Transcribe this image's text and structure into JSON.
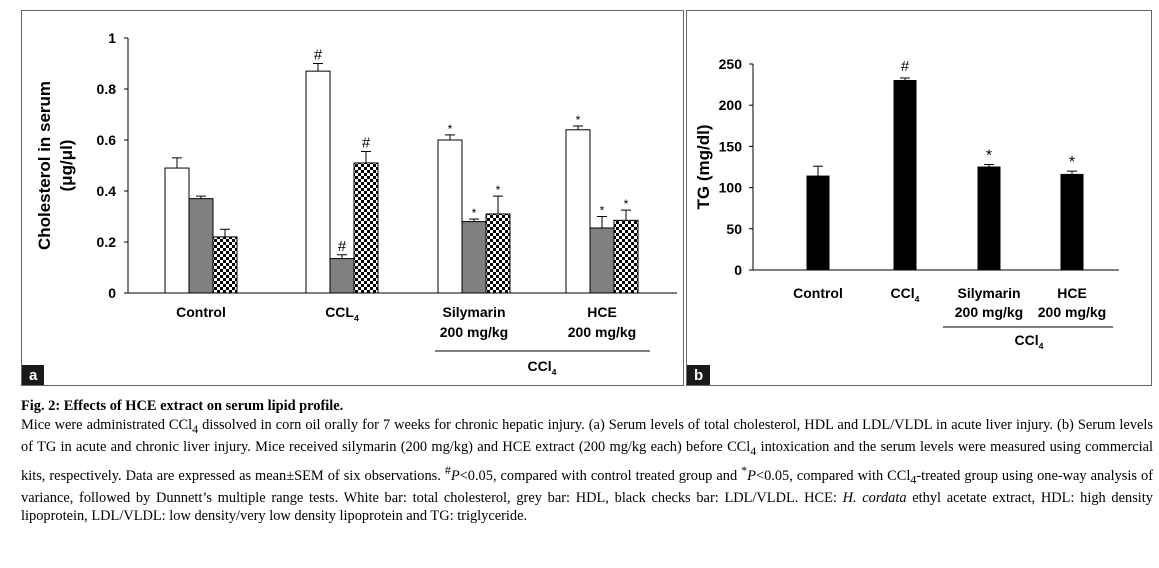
{
  "chart_data": [
    {
      "type": "bar",
      "panel_label": "a",
      "ylabel": "Cholesterol in serum (μg/μl)",
      "ylim": [
        0,
        1
      ],
      "yticks": [
        "0",
        "0.2",
        "0.4",
        "0.6",
        "0.8",
        "1"
      ],
      "categories": [
        {
          "label": "Control",
          "sub": "Control",
          "subscript": ""
        },
        {
          "label": "CCL4",
          "sub": "CCL",
          "subscript": "4"
        },
        {
          "label": "Silymarin 200 mg/kg",
          "line1": "Silymarin",
          "line2": "200 mg/kg"
        },
        {
          "label": "HCE 200 mg/kg",
          "line1": "HCE",
          "line2": "200 mg/kg"
        }
      ],
      "group_label": {
        "text": "CCl",
        "subscript": "4"
      },
      "series": [
        {
          "fill": "white",
          "values": [
            0.49,
            0.87,
            0.6,
            0.64
          ],
          "errors": [
            0.04,
            0.03,
            0.02,
            0.015
          ],
          "marks": [
            "",
            "#",
            "*",
            "*"
          ]
        },
        {
          "fill": "grey",
          "values": [
            0.37,
            0.135,
            0.28,
            0.255
          ],
          "errors": [
            0.01,
            0.015,
            0.01,
            0.045
          ],
          "marks": [
            "",
            "#",
            "*",
            "*"
          ]
        },
        {
          "fill": "checks",
          "values": [
            0.22,
            0.51,
            0.31,
            0.285
          ],
          "errors": [
            0.03,
            0.045,
            0.07,
            0.04
          ],
          "marks": [
            "",
            "#",
            "*",
            "*"
          ]
        }
      ]
    },
    {
      "type": "bar",
      "panel_label": "b",
      "ylabel": "TG (mg/dl)",
      "ylim": [
        0,
        250
      ],
      "yticks": [
        "0",
        "50",
        "100",
        "150",
        "200",
        "250"
      ],
      "categories": [
        {
          "label": "Control",
          "line1": "Control"
        },
        {
          "label": "CCl4",
          "line1": "CCl",
          "subscript": "4"
        },
        {
          "label": "Silymarin 200 mg/kg",
          "line1": "Silymarin",
          "line2": "200 mg/kg"
        },
        {
          "label": "HCE 200 mg/kg",
          "line1": "HCE",
          "line2": "200 mg/kg"
        }
      ],
      "group_label": {
        "text": "CCl",
        "subscript": "4"
      },
      "series": [
        {
          "fill": "black",
          "values": [
            114,
            230,
            125,
            116
          ],
          "errors": [
            12,
            3,
            3,
            4
          ],
          "marks": [
            "",
            "#",
            "*",
            "*"
          ]
        }
      ]
    }
  ],
  "caption": {
    "title": "Fig. 2: Effects of HCE extract on serum lipid profile.",
    "p1_a": "Mice were administrated CCl",
    "p1_b": " dissolved in corn oil orally for 7 weeks for chronic hepatic injury. (a) Serum levels of total cholesterol, HDL and LDL/VLDL in acute liver injury. (b) Serum levels of TG in acute and chronic liver injury. Mice received silymarin (200 mg/kg) and HCE extract (200 mg/kg each) before CCl",
    "p1_c": " intoxication and the serum levels were measured using commercial kits, respectively. Data are expressed as mean±SEM of six observations. ",
    "hash": "#",
    "p_italic": "P",
    "p1_d": "<0.05, compared with control treated group and ",
    "star": "*",
    "p1_e": "<0.05, compared with CCl",
    "p1_f": "-treated group using one-way analysis of variance, followed by Dunnett’s multiple range tests. White bar: total cholesterol, grey bar: HDL, black checks bar: LDL/VLDL. HCE: ",
    "species": "H. cordata",
    "p1_g": " ethyl acetate extract, HDL: high density lipoprotein, LDL/VLDL: low density/very low density lipoprotein and TG: triglyceride.",
    "sub4": "4"
  }
}
